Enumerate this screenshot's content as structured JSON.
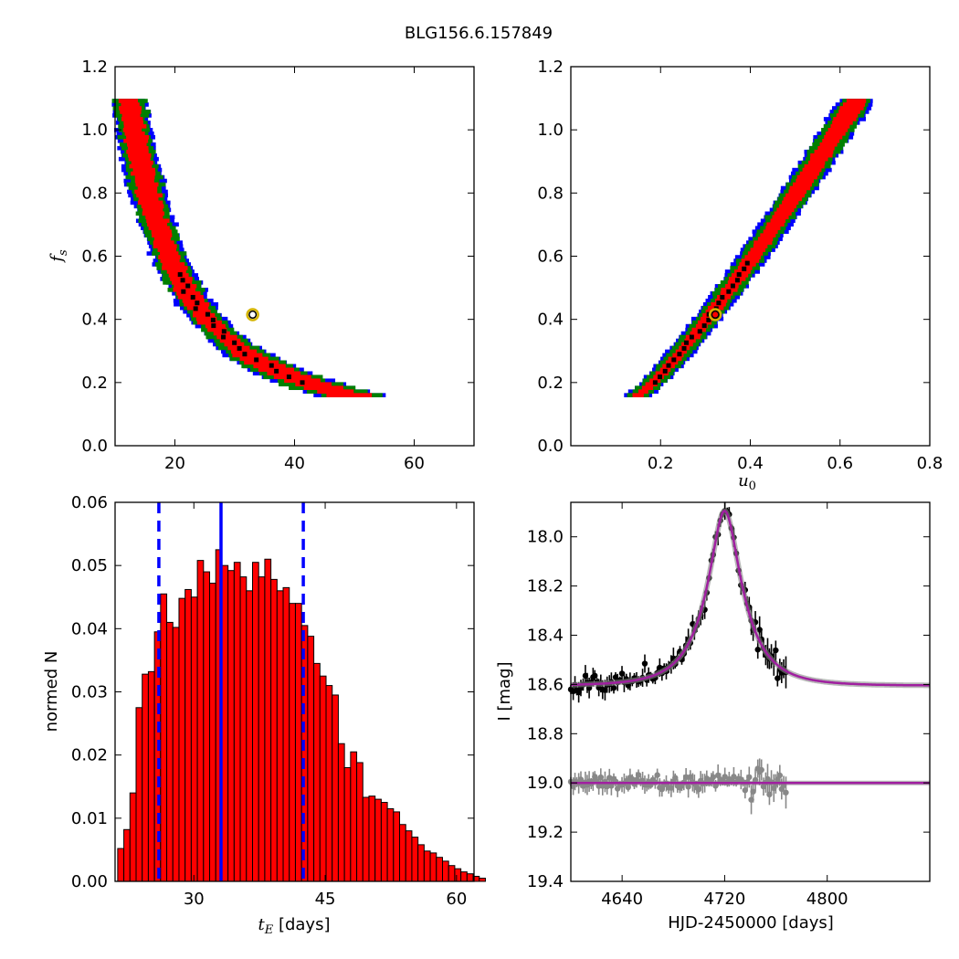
{
  "title": "BLG156.6.157849",
  "colors": {
    "scatter_outer": "#0000ff",
    "scatter_mid": "#008000",
    "scatter_inner": "#ff0000",
    "scatter_best": "#000000",
    "marker_ring": "#d4b400",
    "hist_bar": "#ff0000",
    "vline": "#0000ff",
    "model": "#a020a0",
    "primary_points": "#000000",
    "secondary_points": "#888888"
  },
  "chart_data": [
    {
      "type": "scatter",
      "panel": "top-left",
      "xlabel": "",
      "ylabel": "f_s",
      "xlim": [
        10,
        70
      ],
      "ylim": [
        0.0,
        1.2
      ],
      "xticks": [
        "20",
        "40",
        "60"
      ],
      "yticks": [
        "0.0",
        "0.2",
        "0.4",
        "0.6",
        "0.8",
        "1.0",
        "1.2"
      ],
      "xtick_values": [
        20,
        40,
        60
      ],
      "ytick_values": [
        0.0,
        0.2,
        0.4,
        0.6,
        0.8,
        1.0,
        1.2
      ],
      "relation": "tE = 13.2 / fs^0.72 (band of solutions from fs 0.16 to 1.1)",
      "fs_range": [
        0.16,
        1.1
      ],
      "best_fit": {
        "x": 33,
        "y": 0.415
      }
    },
    {
      "type": "scatter",
      "panel": "top-right",
      "xlabel": "u_0",
      "ylabel": "",
      "xlim": [
        0.0,
        0.8
      ],
      "ylim": [
        0.0,
        1.2
      ],
      "xticks": [
        "0.2",
        "0.4",
        "0.6",
        "0.8"
      ],
      "yticks": [
        "0.0",
        "0.2",
        "0.4",
        "0.6",
        "0.8",
        "1.0",
        "1.2"
      ],
      "xtick_values": [
        0.2,
        0.4,
        0.6,
        0.8
      ],
      "ytick_values": [
        0.0,
        0.2,
        0.4,
        0.6,
        0.8,
        1.0,
        1.2
      ],
      "relation": "u0 increases with fs from (0.15, 0.16) to (0.64, 1.1)",
      "fs_range": [
        0.16,
        1.1
      ],
      "best_fit": {
        "x": 0.322,
        "y": 0.415
      }
    },
    {
      "type": "bar",
      "panel": "bottom-left",
      "xlabel": "t_E [days]",
      "ylabel": "normed N",
      "xlim": [
        21,
        62
      ],
      "ylim": [
        0.0,
        0.06
      ],
      "xticks": [
        "30",
        "45",
        "60"
      ],
      "yticks": [
        "0.00",
        "0.01",
        "0.02",
        "0.03",
        "0.04",
        "0.05",
        "0.06"
      ],
      "xtick_values": [
        30,
        45,
        60
      ],
      "ytick_values": [
        0.0,
        0.01,
        0.02,
        0.03,
        0.04,
        0.05,
        0.06
      ],
      "bin_start": 21.3,
      "bin_width": 0.7,
      "values": [
        0.0052,
        0.0082,
        0.014,
        0.0275,
        0.0328,
        0.0332,
        0.0395,
        0.0455,
        0.041,
        0.0402,
        0.0448,
        0.0462,
        0.045,
        0.0508,
        0.049,
        0.0472,
        0.0525,
        0.05,
        0.0492,
        0.0505,
        0.0482,
        0.046,
        0.0505,
        0.0482,
        0.051,
        0.0478,
        0.046,
        0.0465,
        0.044,
        0.044,
        0.0405,
        0.0388,
        0.0345,
        0.0325,
        0.031,
        0.0295,
        0.0218,
        0.018,
        0.0205,
        0.0188,
        0.0133,
        0.0135,
        0.013,
        0.0125,
        0.0115,
        0.011,
        0.009,
        0.008,
        0.007,
        0.0058,
        0.0048,
        0.0045,
        0.0038,
        0.0032,
        0.0025,
        0.002,
        0.0015,
        0.0012,
        0.0008,
        0.0005
      ],
      "vlines": [
        {
          "x": 26.0,
          "style": "dashed"
        },
        {
          "x": 33.1,
          "style": "solid"
        },
        {
          "x": 42.5,
          "style": "dashed"
        }
      ]
    },
    {
      "type": "line",
      "panel": "bottom-right",
      "xlabel": "HJD-2450000 [days]",
      "ylabel": "I [mag]",
      "xlim": [
        4600,
        4880
      ],
      "ylim": [
        19.4,
        17.86
      ],
      "xticks": [
        "4640",
        "4720",
        "4800"
      ],
      "yticks": [
        "18.0",
        "18.2",
        "18.4",
        "18.6",
        "18.8",
        "19.0",
        "19.2",
        "19.4"
      ],
      "xtick_values": [
        4640,
        4720,
        4800
      ],
      "ytick_values": [
        18.0,
        18.2,
        18.4,
        18.6,
        18.8,
        19.0,
        19.2,
        19.4
      ],
      "model": {
        "baseline": 18.605,
        "peak_mag": 17.9,
        "t0": 4720,
        "tE": 33,
        "u0": 0.322,
        "fs": 0.415
      },
      "residual_baseline": 19.0,
      "data_range": [
        4600,
        4768
      ],
      "series": [
        {
          "role": "light curve",
          "color": "#000000"
        },
        {
          "role": "residuals offset to 19.0",
          "color": "#888888"
        }
      ]
    }
  ]
}
